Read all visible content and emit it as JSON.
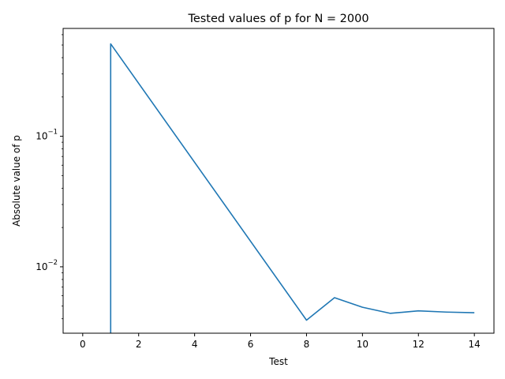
{
  "chart_data": {
    "type": "line",
    "title": "Tested values of p for N = 2000",
    "xlabel": "Test",
    "ylabel": "Absolute value of p",
    "yscale": "log",
    "xlim": [
      -0.7,
      14.7
    ],
    "ylim": [
      0.0031,
      0.67
    ],
    "grid": false,
    "legend": "none",
    "color": "#1f77b4",
    "x_ticks": [
      0,
      2,
      4,
      6,
      8,
      10,
      12,
      14
    ],
    "y_ticks": [
      {
        "value": 0.01,
        "base": "10",
        "exp": "−2"
      },
      {
        "value": 0.1,
        "base": "10",
        "exp": "−1"
      }
    ],
    "series": [
      {
        "x": [
          1,
          1,
          8,
          9,
          10,
          11,
          12,
          13,
          14
        ],
        "y": [
          0.0025,
          0.51,
          0.0039,
          0.0058,
          0.0049,
          0.0044,
          0.0046,
          0.0045,
          0.00445
        ]
      }
    ]
  }
}
